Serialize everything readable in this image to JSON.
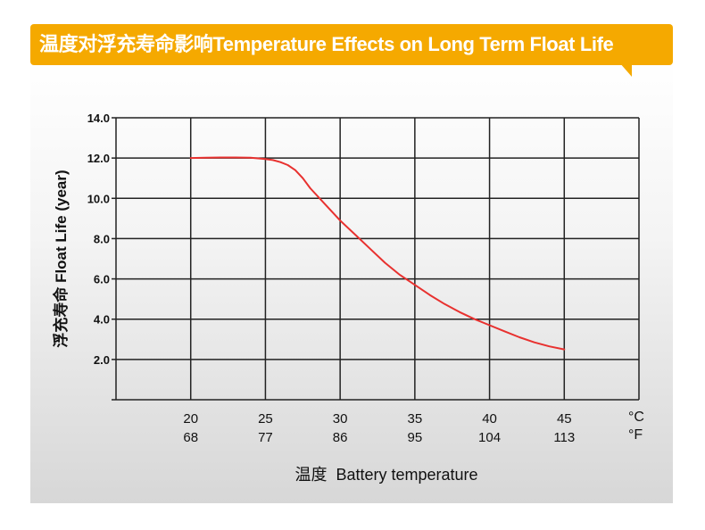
{
  "title": "温度对浮充寿命影响Temperature Effects on Long Term Float Life",
  "chart_data": {
    "type": "line",
    "title": "温度对浮充寿命影响Temperature Effects on Long Term Float Life",
    "xlabel": "温度  Battery temperature",
    "ylabel": "浮充寿命  Float Life (year)",
    "x_units": [
      "°C",
      "°F"
    ],
    "x_ticks_c": [
      "20",
      "25",
      "30",
      "35",
      "40",
      "45"
    ],
    "x_ticks_f": [
      "68",
      "77",
      "86",
      "95",
      "104",
      "113"
    ],
    "y_ticks": [
      "2.0",
      "4.0",
      "6.0",
      "8.0",
      "10.0",
      "12.0",
      "14.0"
    ],
    "xlim": [
      15,
      50
    ],
    "ylim": [
      0,
      14
    ],
    "grid": true,
    "series": [
      {
        "color": "#e8312f",
        "x": [
          20,
          21,
          22,
          23,
          24,
          25,
          25.5,
          26,
          26.5,
          27,
          27.5,
          28,
          29,
          30,
          31,
          32,
          33,
          34,
          35,
          36,
          37,
          38,
          39,
          40,
          41,
          42,
          43,
          44,
          45
        ],
        "y": [
          12.0,
          12.02,
          12.03,
          12.03,
          12.02,
          11.95,
          11.9,
          11.8,
          11.65,
          11.4,
          11.0,
          10.5,
          9.7,
          8.9,
          8.2,
          7.5,
          6.8,
          6.2,
          5.7,
          5.2,
          4.75,
          4.35,
          4.0,
          3.7,
          3.4,
          3.1,
          2.85,
          2.65,
          2.5
        ]
      }
    ]
  }
}
